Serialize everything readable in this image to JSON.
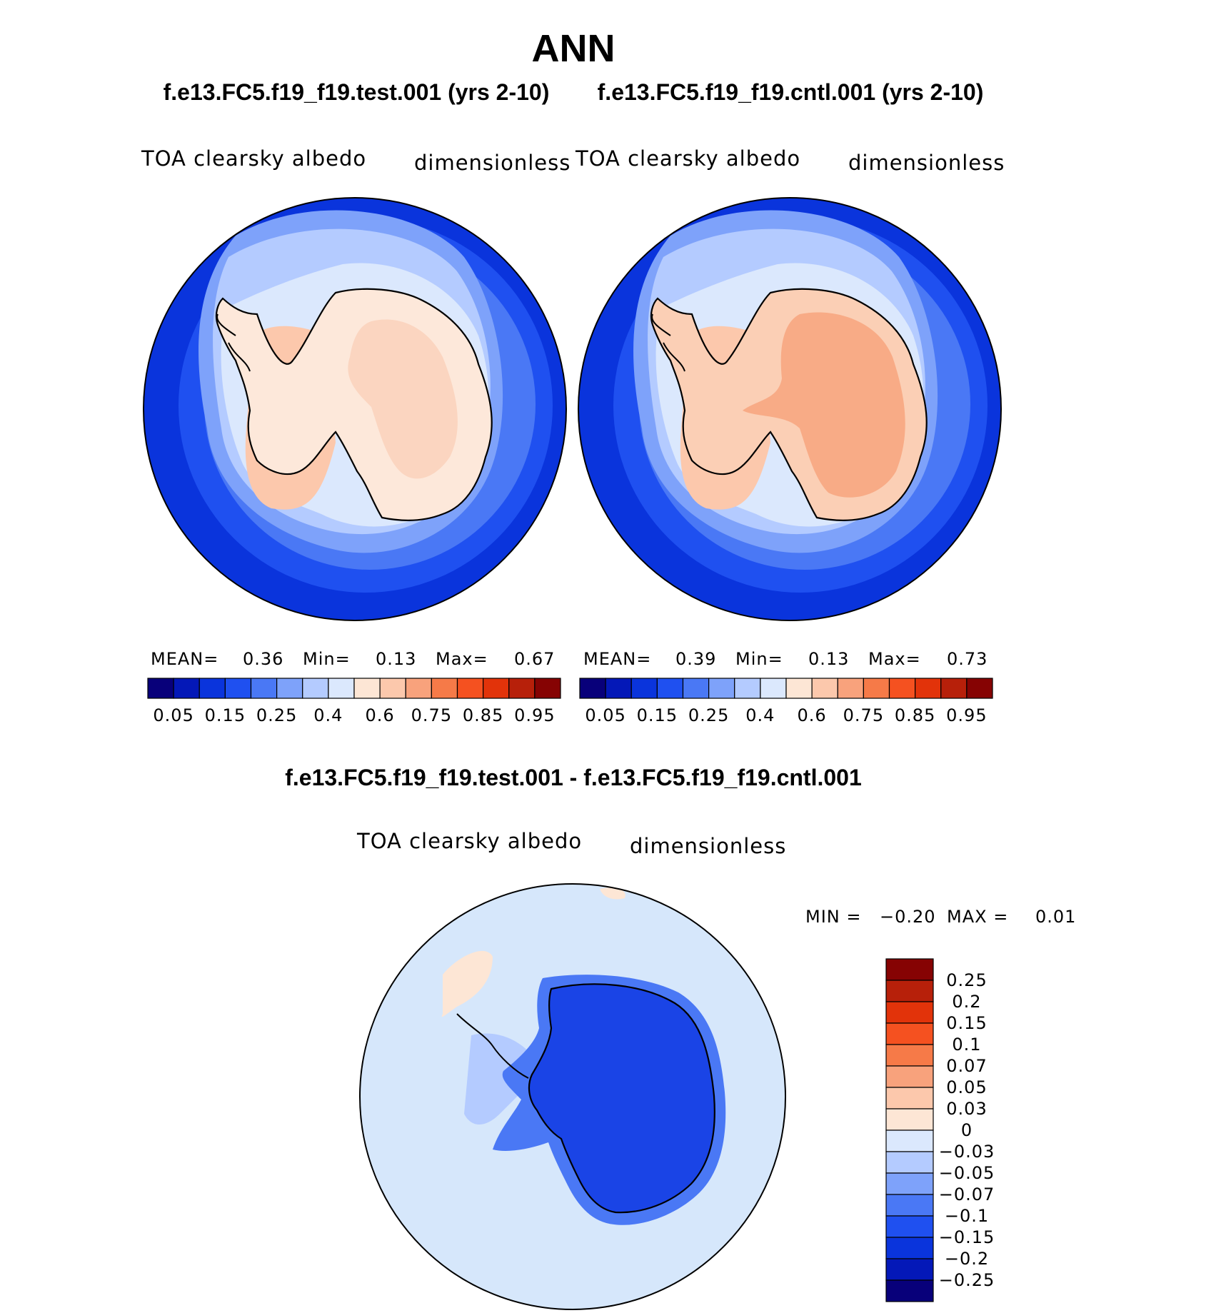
{
  "title": "ANN",
  "colors": {
    "ocean_deep": "#1536e3",
    "coast_line": "#000000"
  },
  "panels": [
    {
      "heading": "f.e13.FC5.f19_f19.test.001 (yrs 2-10)",
      "variable": "TOA clearsky albedo",
      "units": "dimensionless",
      "stats": {
        "mean_label": "MEAN=",
        "mean": "0.36",
        "min_label": "Min=",
        "min": "0.13",
        "max_label": "Max=",
        "max": "0.67"
      },
      "colorbar_ticks": [
        "0.05",
        "0.15",
        "0.25",
        "0.4",
        "0.6",
        "0.75",
        "0.85",
        "0.95"
      ],
      "interior_color": "#fde8da",
      "interior_patch_color": "#fbd5c0"
    },
    {
      "heading": "f.e13.FC5.f19_f19.cntl.001 (yrs 2-10)",
      "variable": "TOA clearsky albedo",
      "units": "dimensionless",
      "stats": {
        "mean_label": "MEAN=",
        "mean": "0.39",
        "min_label": "Min=",
        "min": "0.13",
        "max_label": "Max=",
        "max": "0.73"
      },
      "colorbar_ticks": [
        "0.05",
        "0.15",
        "0.25",
        "0.4",
        "0.6",
        "0.75",
        "0.85",
        "0.95"
      ],
      "interior_color": "#fbcfb5",
      "interior_patch_color": "#f8ab86"
    }
  ],
  "main_colorbar_colors": [
    "#08007a",
    "#0418b8",
    "#0a34dc",
    "#1f50f0",
    "#4a78f5",
    "#7ea2fa",
    "#b4cbff",
    "#dbe8fd",
    "#fde6d5",
    "#fcc8ac",
    "#f8a27c",
    "#f67a48",
    "#f55120",
    "#e2330a",
    "#b7200a",
    "#860303"
  ],
  "diff_panel": {
    "heading": "f.e13.FC5.f19_f19.test.001 - f.e13.FC5.f19_f19.cntl.001",
    "variable": "TOA clearsky albedo",
    "units": "dimensionless",
    "min_label": "MIN =",
    "min": "−0.20",
    "max_label": "MAX =",
    "max": "0.01",
    "colorbar_ticks": [
      "0.25",
      "0.2",
      "0.15",
      "0.1",
      "0.07",
      "0.05",
      "0.03",
      "0",
      "−0.03",
      "−0.05",
      "−0.07",
      "−0.1",
      "−0.15",
      "−0.2",
      "−0.25"
    ],
    "colorbar_colors": [
      "#860303",
      "#b7200a",
      "#e2330a",
      "#f55120",
      "#f67a48",
      "#f8a27c",
      "#fcc8ac",
      "#fde6d5",
      "#dbe8fd",
      "#b4cbff",
      "#7ea2fa",
      "#4a78f5",
      "#1f50f0",
      "#0a34dc",
      "#0418b8",
      "#08007a"
    ],
    "background_color": "#d6e7fb",
    "land_color": "#1a44e6",
    "land_edge_color": "#4a78f5",
    "positive_color": "#fde6d5"
  }
}
